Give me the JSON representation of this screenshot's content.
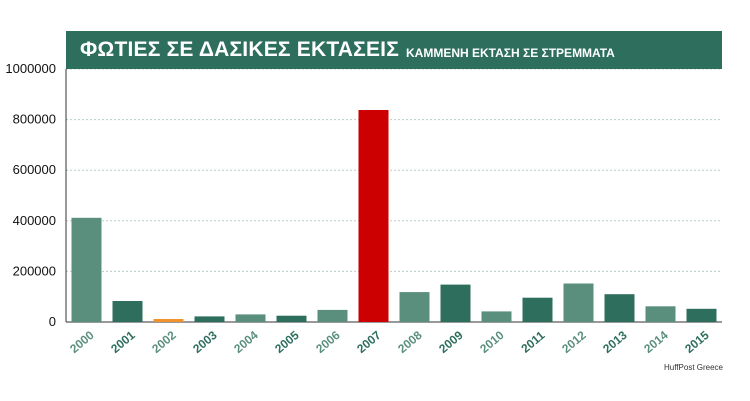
{
  "chart_data": {
    "type": "bar",
    "title": "ΦΩΤΙΕΣ ΣΕ ΔΑΣΙΚΕΣ ΕΚΤΑΣΕΙΣ",
    "subtitle": "ΚΑΜΜΕΝΗ ΕΚΤΑΣΗ ΣΕ ΣΤΡΕΜΜΑΤΑ",
    "source": "HuffPost Greece",
    "categories": [
      "2000",
      "2001",
      "2002",
      "2003",
      "2004",
      "2005",
      "2006",
      "2007",
      "2008",
      "2009",
      "2010",
      "2011",
      "2012",
      "2013",
      "2014",
      "2015"
    ],
    "values": [
      412000,
      83000,
      12000,
      22000,
      30000,
      25000,
      48000,
      838000,
      118000,
      148000,
      42000,
      96000,
      152000,
      110000,
      62000,
      52000
    ],
    "colors": [
      "#5a8f7e",
      "#2d6e5d",
      "#f0922e",
      "#2d6e5d",
      "#5a8f7e",
      "#2d6e5d",
      "#5a8f7e",
      "#cc0000",
      "#5a8f7e",
      "#2d6e5d",
      "#5a8f7e",
      "#2d6e5d",
      "#5a8f7e",
      "#2d6e5d",
      "#5a8f7e",
      "#2d6e5d"
    ],
    "label_colors": [
      "#5a8f7e",
      "#2d6e5d",
      "#5a8f7e",
      "#2d6e5d",
      "#5a8f7e",
      "#2d6e5d",
      "#5a8f7e",
      "#2d6e5d",
      "#5a8f7e",
      "#2d6e5d",
      "#5a8f7e",
      "#2d6e5d",
      "#5a8f7e",
      "#2d6e5d",
      "#5a8f7e",
      "#2d6e5d"
    ],
    "yticks": [
      0,
      200000,
      400000,
      600000,
      800000,
      1000000
    ],
    "ylim": [
      0,
      1000000
    ],
    "grid": true,
    "xlabel": "",
    "ylabel": ""
  }
}
